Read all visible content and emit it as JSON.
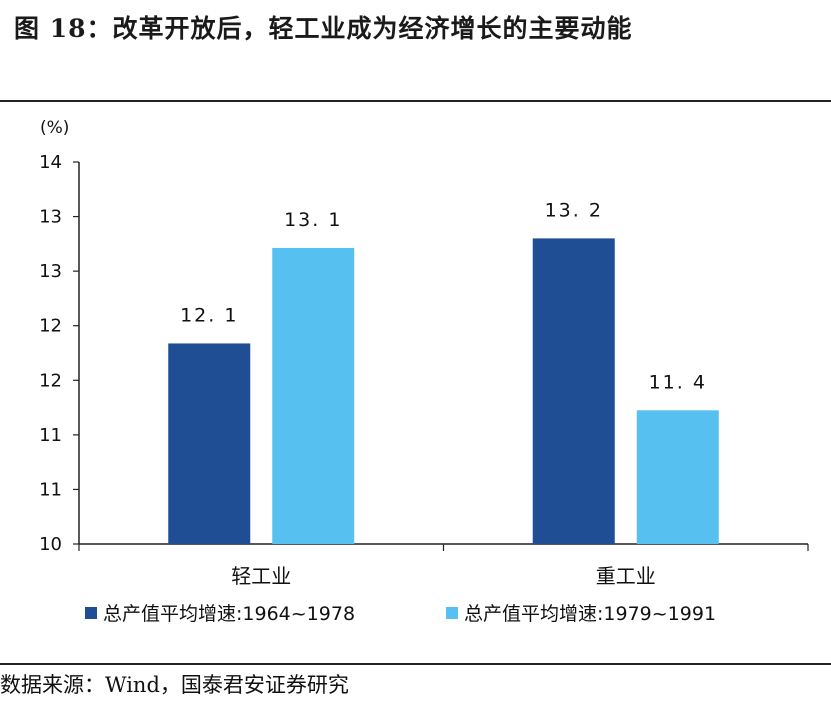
{
  "header": {
    "title": "图 18：改革开放后，轻工业成为经济增长的主要动能"
  },
  "footer": {
    "source": "数据来源：Wind，国泰君安证券研究"
  },
  "chart_data": {
    "type": "bar",
    "unit_label": "(%)",
    "categories": [
      "轻工业",
      "重工业"
    ],
    "series": [
      {
        "name": "总产值平均增速:1964~1978",
        "values": [
          12.1,
          13.2
        ],
        "color": "#1f4e94"
      },
      {
        "name": "总产值平均增速:1979~1991",
        "values": [
          13.1,
          11.4
        ],
        "color": "#56c1f0"
      }
    ],
    "data_labels": [
      [
        "12. 1",
        "13. 2"
      ],
      [
        "13. 1",
        "11. 4"
      ]
    ],
    "y_tick_labels": [
      "14",
      "13",
      "13",
      "12",
      "12",
      "11",
      "11",
      "10"
    ],
    "ylim": [
      10,
      14
    ],
    "grid": false,
    "legend_position": "bottom"
  }
}
